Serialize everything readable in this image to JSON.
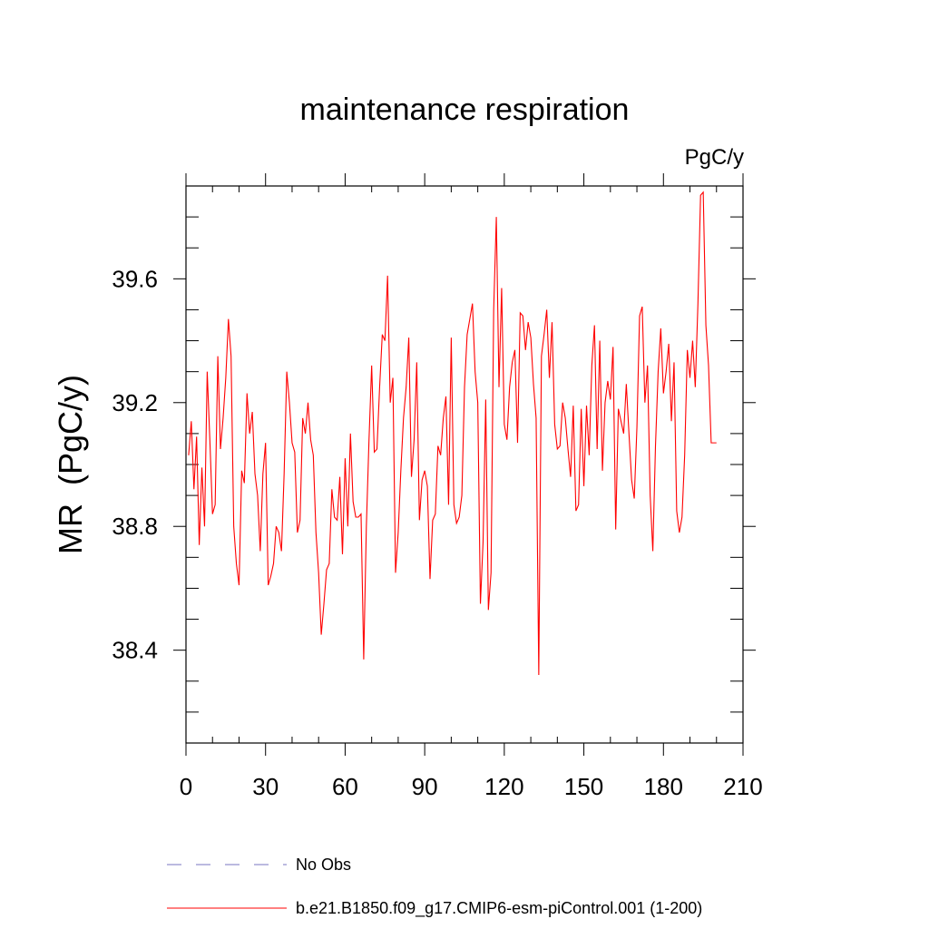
{
  "chart_data": {
    "type": "line",
    "title": "maintenance respiration",
    "units_label": "PgC/y",
    "xlabel": "",
    "ylabel": "MR  (PgC/y)",
    "xlim": [
      0,
      210
    ],
    "ylim": [
      38.1,
      39.9
    ],
    "x_ticks": [
      0,
      30,
      60,
      90,
      120,
      150,
      180,
      210
    ],
    "y_ticks": [
      38.4,
      38.8,
      39.2,
      39.6
    ],
    "x_tick_labels": [
      "0",
      "30",
      "60",
      "90",
      "120",
      "150",
      "180",
      "210"
    ],
    "y_tick_labels": [
      "38.4",
      "38.8",
      "39.2",
      "39.6"
    ],
    "series": [
      {
        "name": "b.e21.B1850.f09_g17.CMIP6-esm-piControl.001 (1-200)",
        "color": "#ff0000",
        "x_start": 1,
        "x_step": 1,
        "values": [
          39.03,
          39.14,
          38.92,
          39.09,
          38.74,
          38.99,
          38.8,
          39.3,
          39.08,
          38.84,
          38.87,
          39.35,
          39.05,
          39.15,
          39.28,
          39.47,
          39.35,
          38.8,
          38.68,
          38.61,
          38.98,
          38.94,
          39.23,
          39.1,
          39.17,
          38.97,
          38.9,
          38.72,
          38.97,
          39.07,
          38.61,
          38.64,
          38.68,
          38.8,
          38.78,
          38.72,
          38.97,
          39.3,
          39.2,
          39.07,
          39.04,
          38.78,
          38.82,
          39.15,
          39.1,
          39.2,
          39.08,
          39.03,
          38.78,
          38.65,
          38.45,
          38.55,
          38.66,
          38.68,
          38.92,
          38.83,
          38.82,
          38.96,
          38.71,
          39.02,
          38.8,
          39.1,
          38.88,
          38.83,
          38.83,
          38.84,
          38.37,
          38.8,
          39.08,
          39.32,
          39.04,
          39.05,
          39.25,
          39.42,
          39.4,
          39.61,
          39.2,
          39.28,
          38.65,
          38.78,
          38.98,
          39.15,
          39.25,
          39.41,
          38.96,
          39.08,
          39.33,
          38.82,
          38.95,
          38.98,
          38.93,
          38.63,
          38.82,
          38.84,
          39.06,
          39.03,
          39.15,
          39.22,
          38.87,
          39.41,
          38.87,
          38.81,
          38.83,
          38.9,
          39.25,
          39.42,
          39.47,
          39.52,
          39.3,
          39.2,
          38.55,
          38.75,
          39.21,
          38.53,
          38.65,
          39.5,
          39.8,
          39.25,
          39.57,
          39.13,
          39.08,
          39.25,
          39.33,
          39.37,
          39.07,
          39.49,
          39.48,
          39.37,
          39.46,
          39.41,
          39.26,
          39.15,
          38.32,
          39.35,
          39.42,
          39.5,
          39.28,
          39.46,
          39.13,
          39.05,
          39.06,
          39.2,
          39.15,
          39.05,
          38.96,
          39.19,
          38.85,
          38.87,
          39.18,
          38.93,
          39.19,
          39.03,
          39.32,
          39.45,
          39.05,
          39.4,
          38.98,
          39.2,
          39.27,
          39.21,
          39.38,
          38.79,
          39.18,
          39.14,
          39.1,
          39.26,
          39.1,
          38.95,
          38.89,
          39.12,
          39.48,
          39.51,
          39.2,
          39.32,
          38.9,
          38.72,
          39.06,
          39.3,
          39.44,
          39.23,
          39.3,
          39.39,
          39.14,
          39.33,
          38.85,
          38.78,
          38.83,
          39.03,
          39.37,
          39.28,
          39.4,
          39.25,
          39.52,
          39.87,
          39.88,
          39.45,
          39.32,
          39.07,
          39.07,
          39.07
        ]
      }
    ],
    "legend": {
      "position": "bottom",
      "entries": [
        {
          "label": "No Obs",
          "color": "#7a74c2",
          "style": "dashed"
        },
        {
          "label": "b.e21.B1850.f09_g17.CMIP6-esm-piControl.001 (1-200)",
          "color": "#ff0000",
          "style": "solid"
        }
      ]
    }
  }
}
